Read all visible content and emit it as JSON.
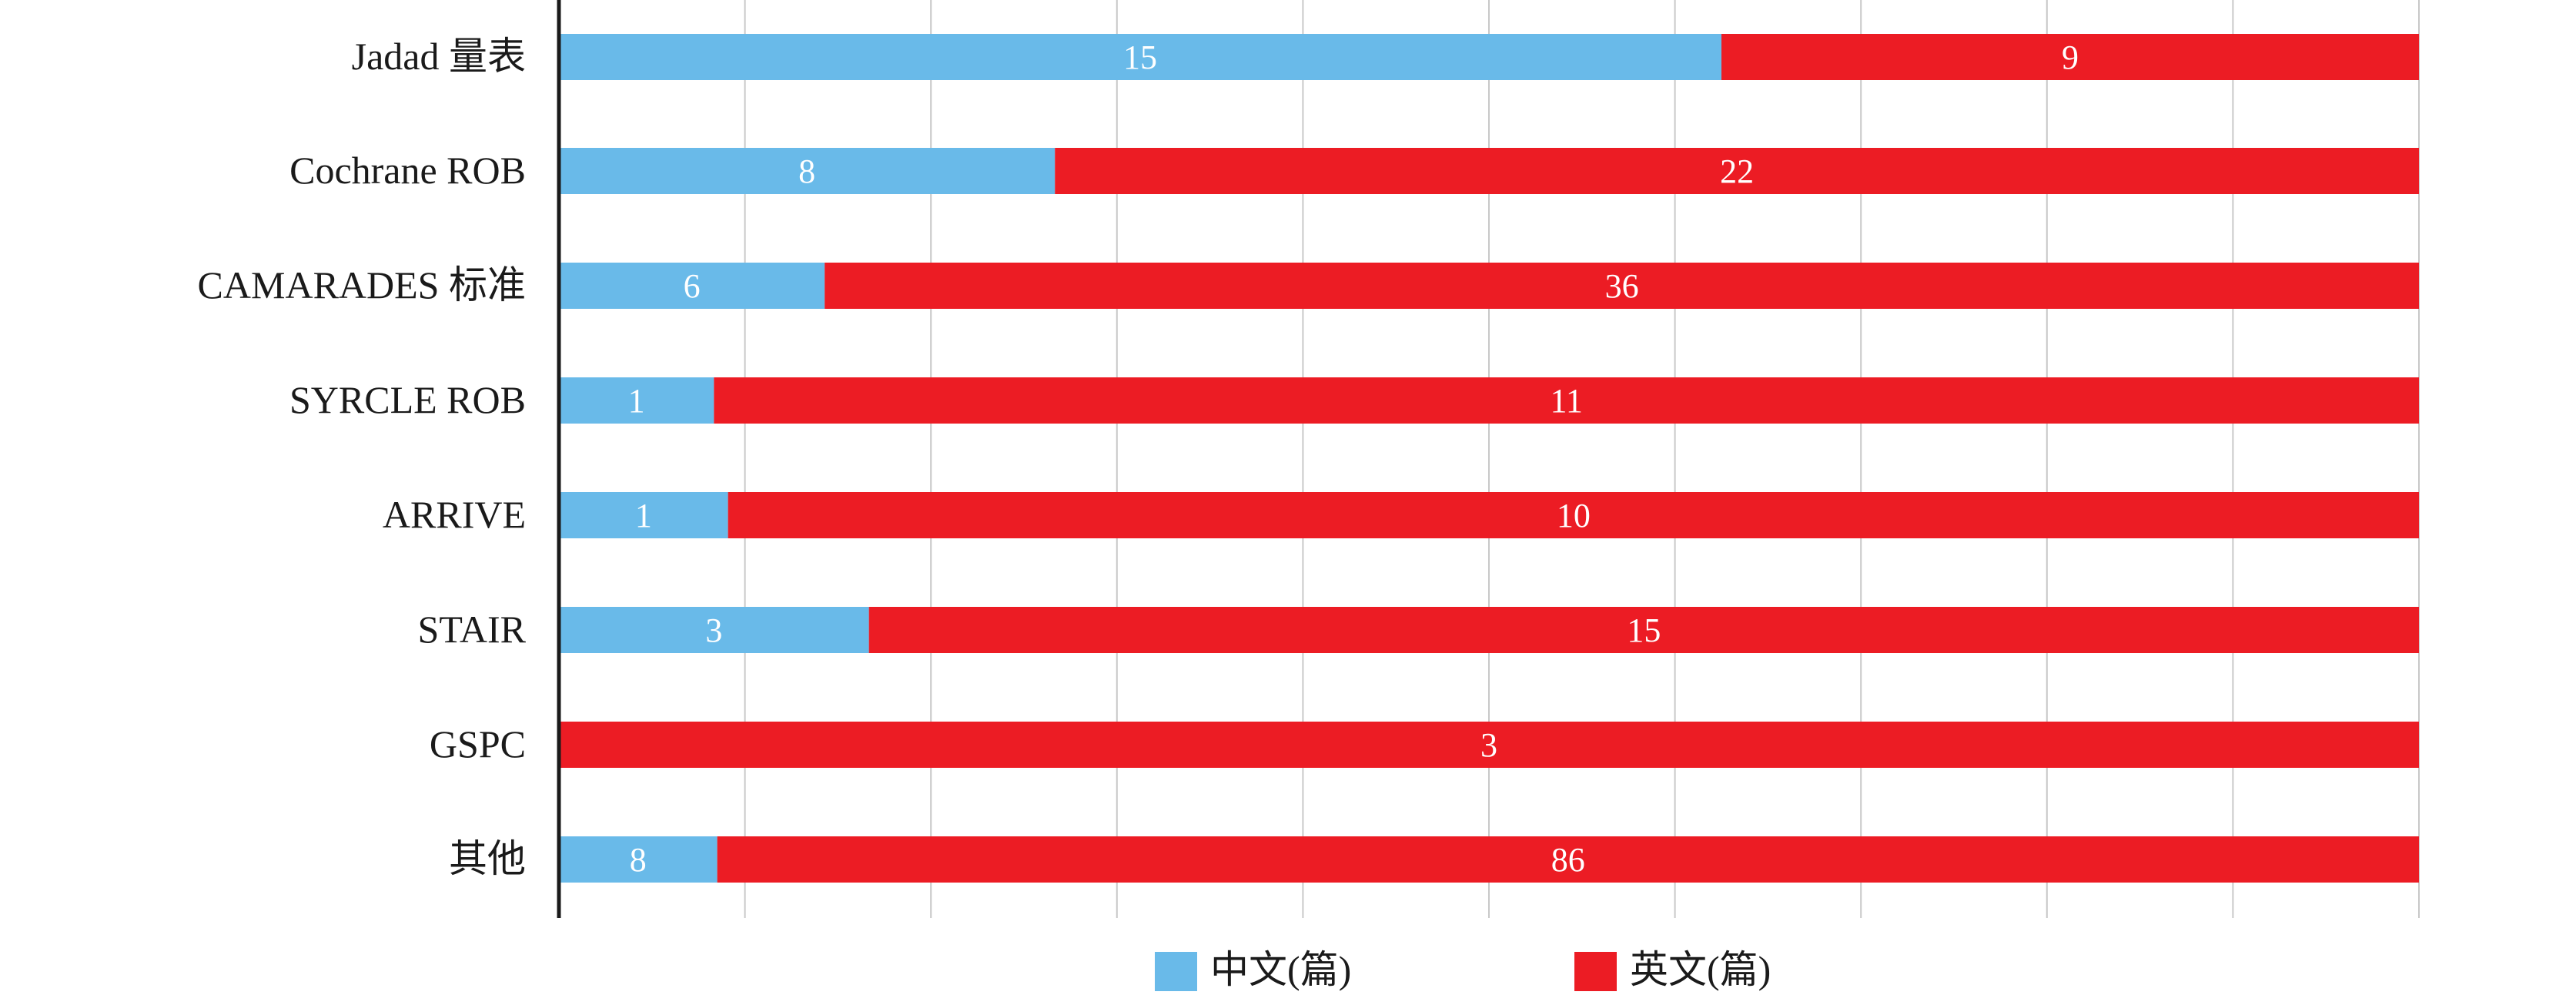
{
  "chart_data": {
    "type": "bar",
    "orientation": "horizontal",
    "stacked": true,
    "normalized": true,
    "categories": [
      "Jadad 量表",
      "Cochrane ROB",
      "CAMARADES 标准",
      "SYRCLE ROB",
      "ARRIVE",
      "STAIR",
      "GSPC",
      "其他"
    ],
    "series": [
      {
        "name": "中文(篇)",
        "color": "#69BAE9",
        "values": [
          15,
          8,
          6,
          1,
          1,
          3,
          0,
          8
        ]
      },
      {
        "name": "英文(篇)",
        "color": "#EC1C24",
        "values": [
          9,
          22,
          36,
          11,
          10,
          15,
          3,
          86
        ]
      }
    ],
    "xlim": [
      0,
      1
    ],
    "grid": true,
    "legend_position": "bottom-center"
  }
}
